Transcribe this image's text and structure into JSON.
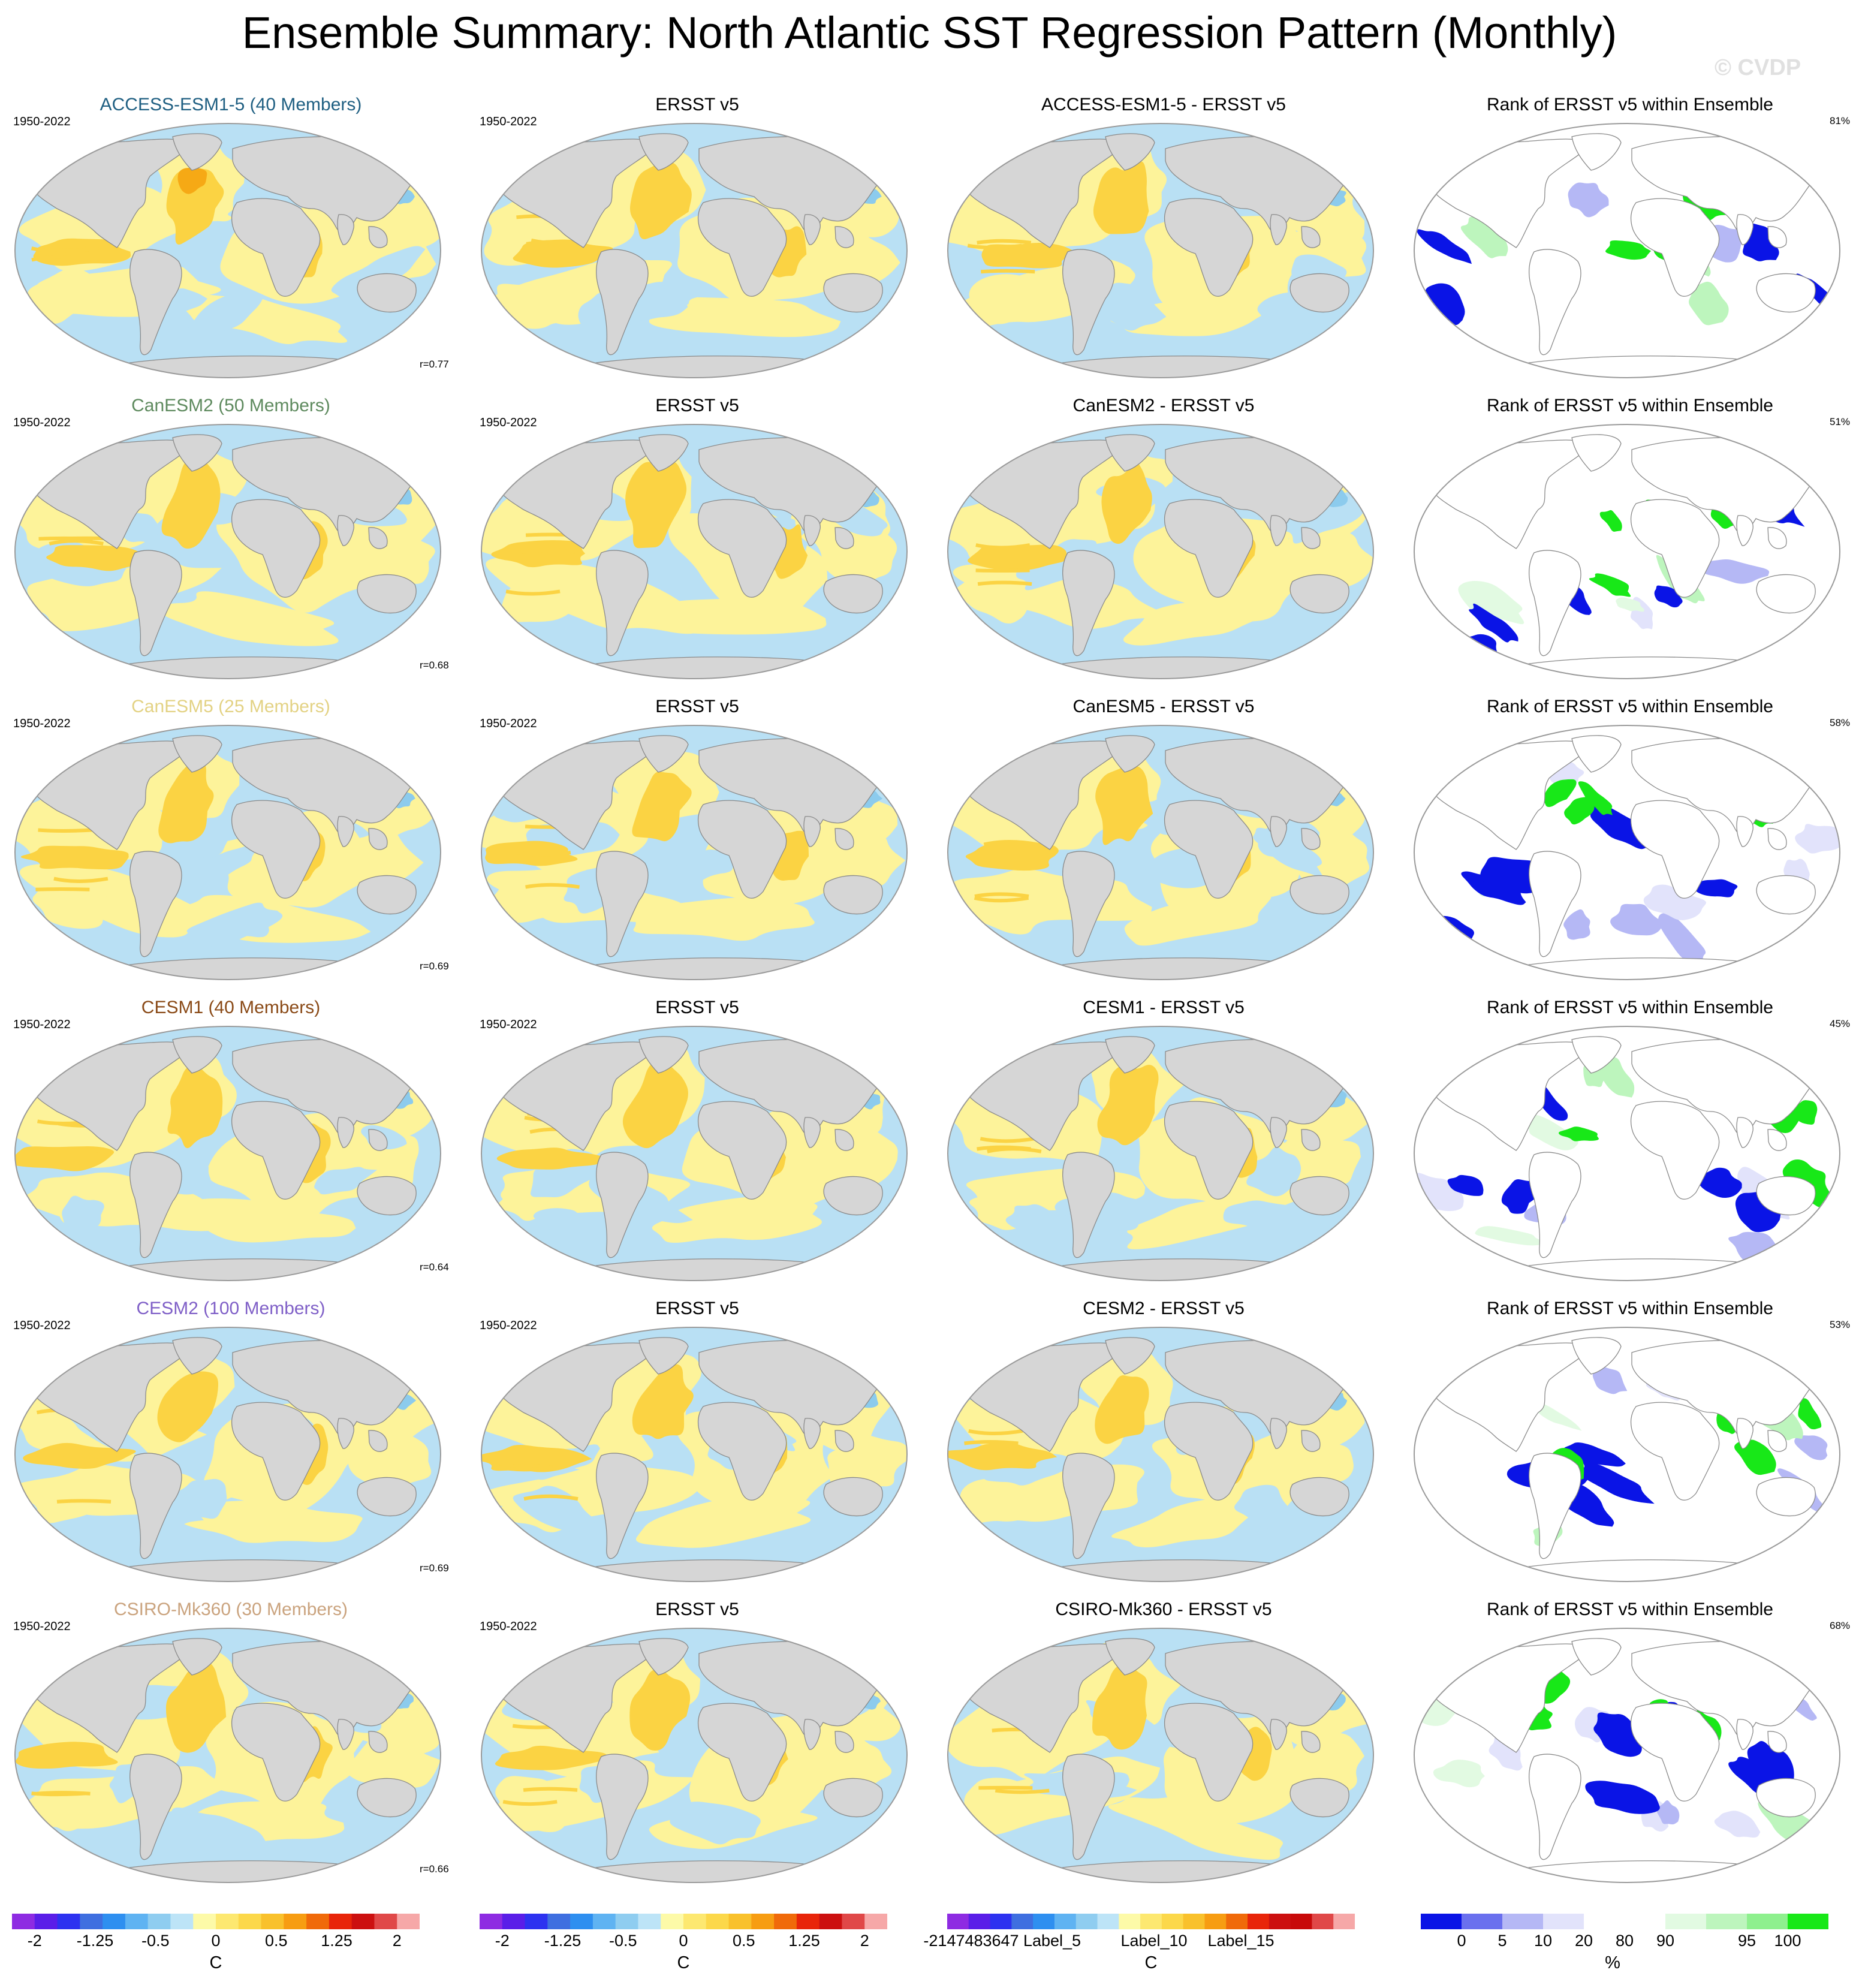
{
  "title": "Ensemble Summary: North Atlantic SST Regression Pattern (Monthly)",
  "copyright": "© CVDP",
  "years": "1950-2022",
  "obs_name": "ERSST v5",
  "rank_title": "Rank of ERSST v5 within Ensemble",
  "colors": {
    "land": "#d6d6d6",
    "coast": "#8a8a8a",
    "outline": "#9a9a9a",
    "ocean_base": "#b9e0f4",
    "warm1": "#fdf39a",
    "warm2": "#fbd343",
    "warm3": "#f6a915",
    "cool2": "#8ccbed",
    "rank_blue": "#0a14e6",
    "rank_green": "#18e818"
  },
  "rows": [
    {
      "model": "ACCESS-ESM1-5 (40 Members)",
      "diff_title": "ACCESS-ESM1-5 - ERSST v5",
      "r": "r=0.77",
      "pct": "81%",
      "color": "#1f5f82"
    },
    {
      "model": "CanESM2 (50 Members)",
      "diff_title": "CanESM2 - ERSST v5",
      "r": "r=0.68",
      "pct": "51%",
      "color": "#5e8a5e"
    },
    {
      "model": "CanESM5 (25 Members)",
      "diff_title": "CanESM5 - ERSST v5",
      "r": "r=0.69",
      "pct": "58%",
      "color": "#e3d284"
    },
    {
      "model": "CESM1 (40 Members)",
      "diff_title": "CESM1 - ERSST v5",
      "r": "r=0.64",
      "pct": "45%",
      "color": "#8a4a17"
    },
    {
      "model": "CESM2 (100 Members)",
      "diff_title": "CESM2 - ERSST v5",
      "r": "r=0.69",
      "pct": "53%",
      "color": "#7f5fc7"
    },
    {
      "model": "CSIRO-Mk360 (30 Members)",
      "diff_title": "CSIRO-Mk360 - ERSST v5",
      "r": "r=0.66",
      "pct": "68%",
      "color": "#caa37e"
    }
  ],
  "colorbars": [
    {
      "colors": [
        "#8e2be2",
        "#5a1ee8",
        "#2d32f0",
        "#3f6fe0",
        "#2e8ff0",
        "#5fb3f2",
        "#8fcdf0",
        "#bde4f7",
        "#fdfaa8",
        "#fde870",
        "#fcd84a",
        "#f9c12c",
        "#f79d12",
        "#f06a0a",
        "#e8250a",
        "#cc1010",
        "#e04848",
        "#f6a8a8"
      ],
      "ticks": [
        "-2",
        "-1.25",
        "-0.5",
        "0",
        "0.5",
        "1.25",
        "2"
      ],
      "unit": "C"
    },
    {
      "colors": [
        "#8e2be2",
        "#5a1ee8",
        "#2d32f0",
        "#3f6fe0",
        "#2e8ff0",
        "#5fb3f2",
        "#8fcdf0",
        "#bde4f7",
        "#fdfaa8",
        "#fde870",
        "#fcd84a",
        "#f9c12c",
        "#f79d12",
        "#f06a0a",
        "#e8250a",
        "#cc1010",
        "#e04848",
        "#f6a8a8"
      ],
      "ticks": [
        "-2",
        "-1.25",
        "-0.5",
        "0",
        "0.5",
        "1.25",
        "2"
      ],
      "unit": "C"
    },
    {
      "colors": [
        "#8e2be2",
        "#5a1ee8",
        "#2d32f0",
        "#3f6fe0",
        "#2e8ff0",
        "#5fb3f2",
        "#8fcdf0",
        "#bde4f7",
        "#fdfaa8",
        "#fde870",
        "#fcd84a",
        "#f9c12c",
        "#f79d12",
        "#f06a0a",
        "#e8250a",
        "#cc1010",
        "#c80a0a",
        "#e04848",
        "#f6a8a8"
      ],
      "ticks": [
        "-2147483647",
        "Label_5",
        "Label_10",
        "Label_15"
      ],
      "unit": "C"
    },
    {
      "colors": [
        "#0a14e6",
        "#6a70ee",
        "#b5b8f5",
        "#e2e3fb",
        "#ffffff",
        "#ffffff",
        "#e2fae2",
        "#bdf5bd",
        "#8ef08e",
        "#18e818"
      ],
      "ticks": [
        "0",
        "5",
        "10",
        "20",
        "80",
        "90",
        "95",
        "100"
      ],
      "unit": "%"
    }
  ]
}
